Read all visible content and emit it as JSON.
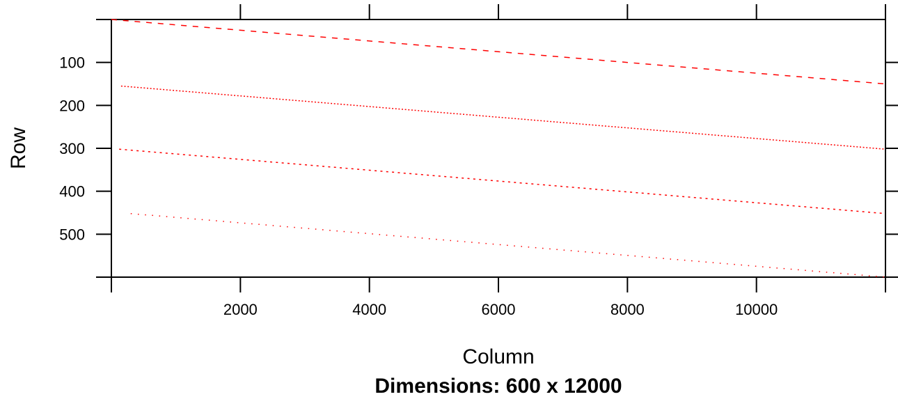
{
  "chart_data": {
    "type": "scatter",
    "title": "",
    "subtitle": "Dimensions: 600 x 12000",
    "xlabel": "Column",
    "ylabel": "Row",
    "xlim": [
      0,
      12000
    ],
    "ylim": [
      600,
      0
    ],
    "x_ticks": [
      2000,
      4000,
      6000,
      8000,
      10000
    ],
    "x_tick_labels": [
      "2000",
      "4000",
      "6000",
      "8000",
      "10000"
    ],
    "y_ticks": [
      100,
      200,
      300,
      400,
      500
    ],
    "y_tick_labels": [
      "100",
      "200",
      "300",
      "400",
      "500"
    ],
    "grid": false,
    "point_color": "#ff0000",
    "series": [
      {
        "x": [
          0,
          12000
        ],
        "y": [
          0,
          150
        ],
        "spacing": 180,
        "dash": 8
      },
      {
        "x": [
          150,
          12000
        ],
        "y": [
          155,
          302
        ],
        "spacing": 50,
        "dash": 2
      },
      {
        "x": [
          120,
          12000
        ],
        "y": [
          302,
          452
        ],
        "spacing": 90,
        "dash": 3
      },
      {
        "x": [
          300,
          12000
        ],
        "y": [
          452,
          600
        ],
        "spacing": 110,
        "dash": 1.5
      }
    ]
  }
}
